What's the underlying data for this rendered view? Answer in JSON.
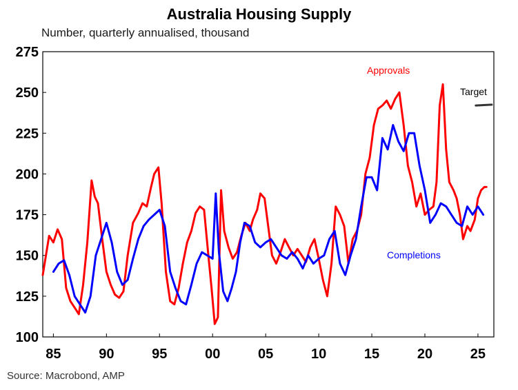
{
  "chart_data": {
    "type": "line",
    "title": "Australia Housing Supply",
    "subtitle": "Number, quarterly annualised, thousand",
    "source": "Source: Macrobond, AMP",
    "xlabel": "",
    "ylabel": "",
    "xlim": [
      1984,
      2026.5
    ],
    "ylim": [
      100,
      275
    ],
    "yticks": [
      100,
      125,
      150,
      175,
      200,
      225,
      250,
      275
    ],
    "xticks": [
      {
        "value": 1985,
        "label": "85"
      },
      {
        "value": 1990,
        "label": "90"
      },
      {
        "value": 1995,
        "label": "95"
      },
      {
        "value": 2000,
        "label": "00"
      },
      {
        "value": 2005,
        "label": "05"
      },
      {
        "value": 2010,
        "label": "10"
      },
      {
        "value": 2015,
        "label": "15"
      },
      {
        "value": 2020,
        "label": "20"
      },
      {
        "value": 2025,
        "label": "25"
      }
    ],
    "series": [
      {
        "name": "Approvals",
        "color": "#ff0000",
        "x": [
          1984.0,
          1984.3,
          1984.6,
          1985.0,
          1985.4,
          1985.8,
          1986.2,
          1986.6,
          1987.0,
          1987.4,
          1987.8,
          1988.2,
          1988.6,
          1988.9,
          1989.2,
          1989.6,
          1990.0,
          1990.4,
          1990.8,
          1991.2,
          1991.6,
          1992.0,
          1992.5,
          1993.0,
          1993.4,
          1993.8,
          1994.2,
          1994.5,
          1994.9,
          1995.2,
          1995.6,
          1996.0,
          1996.4,
          1996.8,
          1997.2,
          1997.6,
          1998.0,
          1998.4,
          1998.8,
          1999.2,
          1999.6,
          1999.9,
          2000.2,
          2000.5,
          2000.8,
          2001.1,
          2001.5,
          2001.9,
          2002.3,
          2002.7,
          2003.1,
          2003.5,
          2003.8,
          2004.2,
          2004.5,
          2004.9,
          2005.2,
          2005.6,
          2006.0,
          2006.4,
          2006.8,
          2007.2,
          2007.6,
          2008.0,
          2008.4,
          2008.8,
          2009.2,
          2009.6,
          2010.0,
          2010.4,
          2010.8,
          2011.2,
          2011.6,
          2012.0,
          2012.4,
          2012.8,
          2013.2,
          2013.6,
          2014.0,
          2014.4,
          2014.8,
          2015.2,
          2015.6,
          2016.0,
          2016.4,
          2016.8,
          2017.2,
          2017.6,
          2018.0,
          2018.4,
          2018.8,
          2019.2,
          2019.6,
          2020.0,
          2020.4,
          2020.8,
          2021.1,
          2021.4,
          2021.7,
          2022.0,
          2022.3,
          2022.7,
          2023.0,
          2023.3,
          2023.6,
          2024.0,
          2024.3,
          2024.7,
          2025.0,
          2025.3,
          2025.6,
          2025.8
        ],
        "y": [
          138,
          150,
          162,
          158,
          166,
          160,
          130,
          122,
          118,
          114,
          132,
          158,
          196,
          186,
          182,
          160,
          140,
          132,
          126,
          124,
          128,
          150,
          170,
          176,
          182,
          180,
          192,
          200,
          204,
          182,
          140,
          122,
          120,
          130,
          145,
          158,
          165,
          176,
          180,
          178,
          150,
          130,
          108,
          112,
          190,
          165,
          155,
          148,
          152,
          162,
          170,
          165,
          172,
          178,
          188,
          185,
          170,
          150,
          145,
          152,
          160,
          155,
          150,
          154,
          150,
          146,
          155,
          160,
          148,
          135,
          125,
          145,
          180,
          175,
          168,
          145,
          160,
          165,
          175,
          200,
          210,
          230,
          240,
          242,
          245,
          240,
          246,
          250,
          230,
          205,
          195,
          180,
          188,
          175,
          178,
          180,
          195,
          242,
          255,
          215,
          195,
          190,
          185,
          175,
          160,
          168,
          165,
          172,
          185,
          190,
          192,
          192
        ]
      },
      {
        "name": "Completions",
        "color": "#0000ff",
        "x": [
          1985.0,
          1985.5,
          1986.0,
          1986.5,
          1987.0,
          1987.5,
          1988.0,
          1988.5,
          1989.0,
          1989.5,
          1990.0,
          1990.5,
          1991.0,
          1991.5,
          1992.0,
          1992.5,
          1993.0,
          1993.5,
          1994.0,
          1994.5,
          1995.0,
          1995.5,
          1996.0,
          1996.5,
          1997.0,
          1997.5,
          1998.0,
          1998.5,
          1999.0,
          1999.5,
          2000.0,
          2000.3,
          2000.6,
          2001.0,
          2001.4,
          2001.8,
          2002.2,
          2002.6,
          2003.0,
          2003.5,
          2004.0,
          2004.5,
          2005.0,
          2005.5,
          2006.0,
          2006.5,
          2007.0,
          2007.5,
          2008.0,
          2008.5,
          2009.0,
          2009.5,
          2010.0,
          2010.5,
          2011.0,
          2011.5,
          2012.0,
          2012.5,
          2013.0,
          2013.5,
          2014.0,
          2014.5,
          2015.0,
          2015.5,
          2016.0,
          2016.5,
          2017.0,
          2017.5,
          2018.0,
          2018.5,
          2019.0,
          2019.5,
          2020.0,
          2020.5,
          2021.0,
          2021.5,
          2022.0,
          2022.5,
          2023.0,
          2023.5,
          2024.0,
          2024.5,
          2025.0,
          2025.5
        ],
        "y": [
          140,
          145,
          147,
          138,
          125,
          120,
          115,
          125,
          150,
          160,
          170,
          158,
          140,
          132,
          135,
          148,
          160,
          168,
          172,
          175,
          178,
          168,
          140,
          130,
          122,
          120,
          132,
          145,
          152,
          150,
          148,
          188,
          152,
          128,
          122,
          130,
          140,
          158,
          170,
          168,
          158,
          155,
          158,
          160,
          155,
          150,
          148,
          152,
          148,
          142,
          150,
          145,
          148,
          150,
          160,
          165,
          145,
          138,
          150,
          160,
          180,
          198,
          198,
          190,
          222,
          215,
          230,
          220,
          214,
          225,
          225,
          205,
          190,
          170,
          175,
          182,
          180,
          175,
          170,
          168,
          180,
          175,
          180,
          175
        ]
      },
      {
        "name": "Target",
        "color": "#333333",
        "x": [
          2024.8,
          2026.3
        ],
        "y": [
          242,
          242.5
        ]
      }
    ],
    "annotations": [
      {
        "text": "Approvals",
        "color": "#ff0000"
      },
      {
        "text": "Completions",
        "color": "#0000ff"
      },
      {
        "text": "Target",
        "color": "#000000"
      }
    ]
  }
}
